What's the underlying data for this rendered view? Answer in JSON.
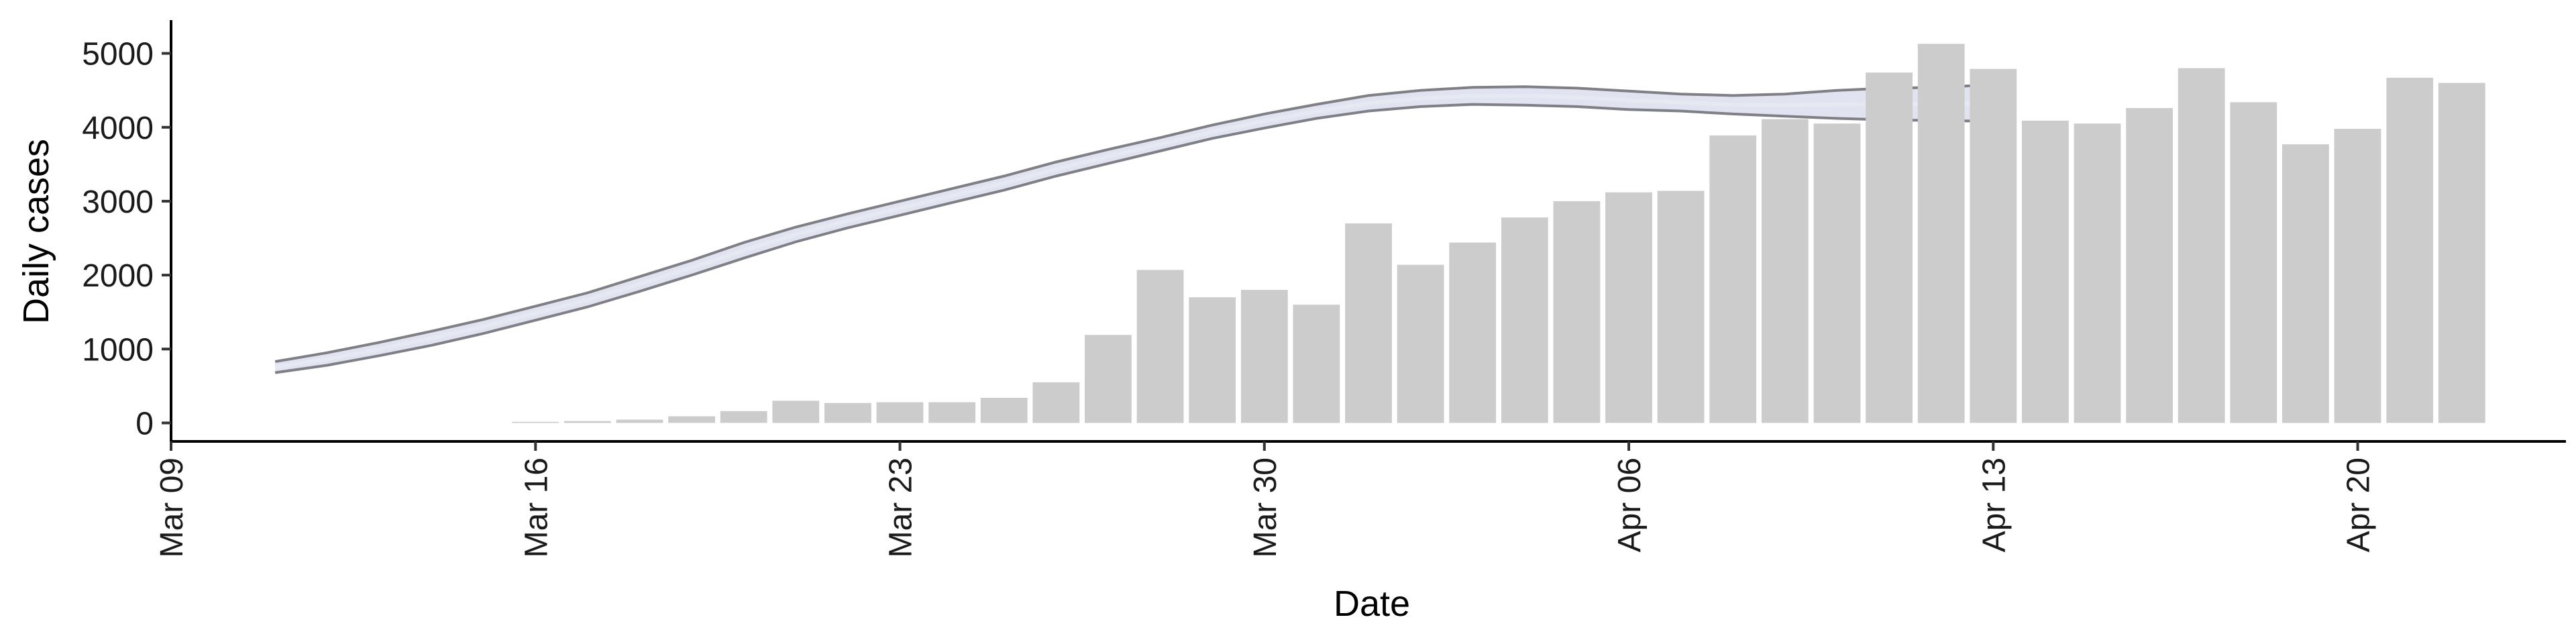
{
  "chart_data": {
    "type": "bar",
    "xlabel": "Date",
    "ylabel": "Daily cases",
    "ylim": [
      -250,
      5450
    ],
    "xlim": [
      "2020-03-09",
      "2020-04-24"
    ],
    "yticks": [
      0,
      1000,
      2000,
      3000,
      4000,
      5000
    ],
    "xticks": [
      {
        "date": "2020-03-09",
        "label": "Mar 09"
      },
      {
        "date": "2020-03-16",
        "label": "Mar 16"
      },
      {
        "date": "2020-03-23",
        "label": "Mar 23"
      },
      {
        "date": "2020-03-30",
        "label": "Mar 30"
      },
      {
        "date": "2020-04-06",
        "label": "Apr 06"
      },
      {
        "date": "2020-04-13",
        "label": "Apr 13"
      },
      {
        "date": "2020-04-20",
        "label": "Apr 20"
      }
    ],
    "grid": false,
    "bars": {
      "color": "#cccccc",
      "dates": [
        "2020-03-16",
        "2020-03-17",
        "2020-03-18",
        "2020-03-19",
        "2020-03-20",
        "2020-03-21",
        "2020-03-22",
        "2020-03-23",
        "2020-03-24",
        "2020-03-25",
        "2020-03-26",
        "2020-03-27",
        "2020-03-28",
        "2020-03-29",
        "2020-03-30",
        "2020-03-31",
        "2020-04-01",
        "2020-04-02",
        "2020-04-03",
        "2020-04-04",
        "2020-04-05",
        "2020-04-06",
        "2020-04-07",
        "2020-04-08",
        "2020-04-09",
        "2020-04-10",
        "2020-04-11",
        "2020-04-12",
        "2020-04-13",
        "2020-04-14",
        "2020-04-15",
        "2020-04-16",
        "2020-04-17",
        "2020-04-18",
        "2020-04-19",
        "2020-04-20",
        "2020-04-21",
        "2020-04-22"
      ],
      "values": [
        15,
        25,
        45,
        90,
        160,
        300,
        270,
        280,
        280,
        340,
        550,
        1190,
        2070,
        1700,
        1800,
        1600,
        2700,
        2140,
        2440,
        2780,
        3000,
        3120,
        3140,
        3890,
        4110,
        4050,
        4740,
        5130,
        4790,
        4090,
        4050,
        4260,
        4800,
        4340,
        3770,
        3980,
        4670,
        4600
      ]
    },
    "trend": {
      "color": "#7f7f86",
      "band_color": "#c9cde3",
      "dates": [
        "2020-03-11",
        "2020-03-12",
        "2020-03-13",
        "2020-03-14",
        "2020-03-15",
        "2020-03-16",
        "2020-03-17",
        "2020-03-18",
        "2020-03-19",
        "2020-03-20",
        "2020-03-21",
        "2020-03-22",
        "2020-03-23",
        "2020-03-24",
        "2020-03-25",
        "2020-03-26",
        "2020-03-27",
        "2020-03-28",
        "2020-03-29",
        "2020-03-30",
        "2020-03-31",
        "2020-04-01",
        "2020-04-02",
        "2020-04-03",
        "2020-04-04",
        "2020-04-05",
        "2020-04-06",
        "2020-04-07",
        "2020-04-08",
        "2020-04-09",
        "2020-04-10",
        "2020-04-11",
        "2020-04-12",
        "2020-04-13"
      ],
      "upper": [
        830,
        950,
        1090,
        1240,
        1400,
        1580,
        1760,
        1980,
        2200,
        2440,
        2650,
        2830,
        3000,
        3170,
        3340,
        3530,
        3700,
        3860,
        4030,
        4180,
        4310,
        4430,
        4500,
        4540,
        4550,
        4530,
        4490,
        4450,
        4430,
        4450,
        4500,
        4530,
        4540,
        4580
      ],
      "lower": [
        680,
        780,
        910,
        1050,
        1210,
        1390,
        1570,
        1780,
        2000,
        2230,
        2450,
        2640,
        2810,
        2980,
        3150,
        3340,
        3510,
        3680,
        3850,
        3990,
        4120,
        4220,
        4280,
        4310,
        4300,
        4280,
        4240,
        4220,
        4180,
        4150,
        4120,
        4100,
        4090,
        4080
      ]
    }
  }
}
